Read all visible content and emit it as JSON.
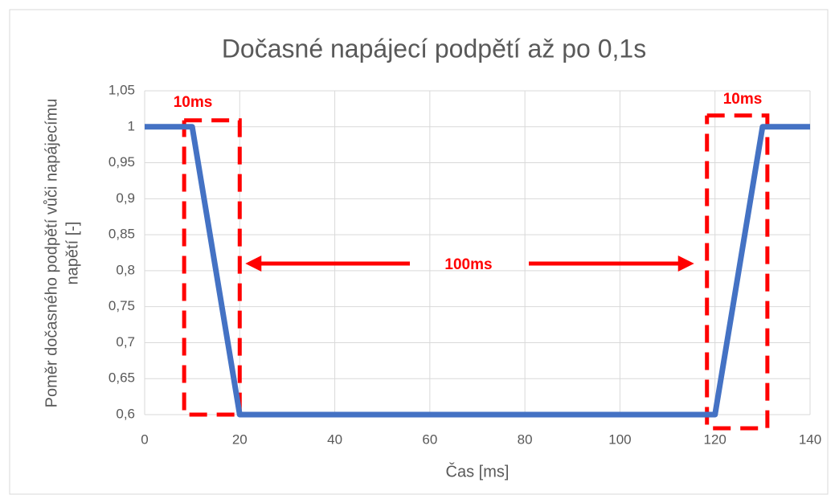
{
  "chart_data": {
    "type": "line",
    "title": "Dočasné napájecí podpětí až po 0,1s",
    "x_label": "Čas [ms]",
    "y_label": [
      "Poměr dočasného podpětí vůči napájecímu",
      "napětí [-]"
    ],
    "x": [
      0,
      10,
      20,
      120,
      130,
      140
    ],
    "series": [
      {
        "color": "#4472c4",
        "values": [
          1,
          1,
          0.6,
          0.6,
          1,
          1
        ]
      }
    ],
    "xlim": [
      0,
      140
    ],
    "xticks": [
      0,
      20,
      40,
      60,
      80,
      100,
      120,
      140
    ],
    "ylim": [
      0.6,
      1.05
    ],
    "yticks": [
      {
        "value": 0.6,
        "label": "0,6"
      },
      {
        "value": 0.65,
        "label": "0,65"
      },
      {
        "value": 0.7,
        "label": "0,7"
      },
      {
        "value": 0.75,
        "label": "0,75"
      },
      {
        "value": 0.8,
        "label": "0,8"
      },
      {
        "value": 0.85,
        "label": "0,85"
      },
      {
        "value": 0.9,
        "label": "0,9"
      },
      {
        "value": 0.95,
        "label": "0,95"
      },
      1,
      {
        "value": 1.05,
        "label": "1,05"
      }
    ],
    "grid": true,
    "annotations": [
      "10ms",
      "10ms",
      "100ms"
    ],
    "annotation_color": "#ff0000"
  }
}
